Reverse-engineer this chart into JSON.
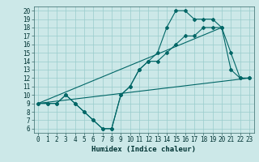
{
  "xlabel": "Humidex (Indice chaleur)",
  "background_color": "#cce8e8",
  "grid_color": "#99cccc",
  "line_color": "#006666",
  "xlim": [
    -0.5,
    23.5
  ],
  "ylim": [
    5.5,
    20.5
  ],
  "xticks": [
    0,
    1,
    2,
    3,
    4,
    5,
    6,
    7,
    8,
    9,
    10,
    11,
    12,
    13,
    14,
    15,
    16,
    17,
    18,
    19,
    20,
    21,
    22,
    23
  ],
  "yticks": [
    6,
    7,
    8,
    9,
    10,
    11,
    12,
    13,
    14,
    15,
    16,
    17,
    18,
    19,
    20
  ],
  "line1_x": [
    0,
    1,
    2,
    3,
    4,
    5,
    6,
    7,
    8,
    9,
    10,
    11,
    12,
    13,
    14,
    15,
    16,
    17,
    18,
    19,
    20,
    21,
    22,
    23
  ],
  "line1_y": [
    9,
    9,
    9,
    10,
    9,
    8,
    7,
    6,
    6,
    10,
    11,
    13,
    14,
    15,
    18,
    20,
    20,
    19,
    19,
    19,
    18,
    15,
    12,
    12
  ],
  "line2_x": [
    0,
    1,
    2,
    3,
    4,
    5,
    6,
    7,
    8,
    9,
    10,
    11,
    12,
    13,
    14,
    15,
    16,
    17,
    18,
    19,
    20,
    21,
    22,
    23
  ],
  "line2_y": [
    9,
    9,
    9,
    10,
    9,
    8,
    7,
    6,
    6,
    10,
    11,
    13,
    14,
    14,
    15,
    16,
    17,
    17,
    18,
    18,
    18,
    13,
    12,
    12
  ],
  "line3_x": [
    0,
    23
  ],
  "line3_y": [
    9,
    12
  ],
  "line4_x": [
    0,
    20
  ],
  "line4_y": [
    9,
    18
  ],
  "marker": "D",
  "markersize": 2.0,
  "linewidth": 0.8,
  "fontsize_ticks": 5.5,
  "fontsize_label": 6.5
}
